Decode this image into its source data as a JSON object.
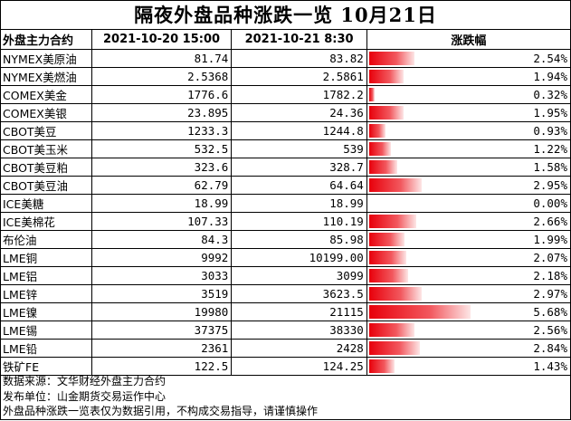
{
  "title": "隔夜外盘品种涨跌一览 10月21日",
  "headers": {
    "contract": "外盘主力合约",
    "prev": "2021-10-20 15:00",
    "curr": "2021-10-21 8:30",
    "change": "涨跌幅"
  },
  "rows": [
    {
      "name": "NYMEX美原油",
      "prev": "81.74",
      "curr": "83.82",
      "change": "2.54%",
      "pct": 2.54
    },
    {
      "name": "NYMEX美燃油",
      "prev": "2.5368",
      "curr": "2.5861",
      "change": "1.94%",
      "pct": 1.94
    },
    {
      "name": "COMEX美金",
      "prev": "1776.6",
      "curr": "1782.2",
      "change": "0.32%",
      "pct": 0.32
    },
    {
      "name": "COMEX美银",
      "prev": "23.895",
      "curr": "24.36",
      "change": "1.95%",
      "pct": 1.95
    },
    {
      "name": "CBOT美豆",
      "prev": "1233.3",
      "curr": "1244.8",
      "change": "0.93%",
      "pct": 0.93
    },
    {
      "name": "CBOT美玉米",
      "prev": "532.5",
      "curr": "539",
      "change": "1.22%",
      "pct": 1.22
    },
    {
      "name": "CBOT美豆粕",
      "prev": "323.6",
      "curr": "328.7",
      "change": "1.58%",
      "pct": 1.58
    },
    {
      "name": "CBOT美豆油",
      "prev": "62.79",
      "curr": "64.64",
      "change": "2.95%",
      "pct": 2.95
    },
    {
      "name": "ICE美糖",
      "prev": "18.99",
      "curr": "18.99",
      "change": "0.00%",
      "pct": 0.0
    },
    {
      "name": "ICE美棉花",
      "prev": "107.33",
      "curr": "110.19",
      "change": "2.66%",
      "pct": 2.66
    },
    {
      "name": "布伦油",
      "prev": "84.3",
      "curr": "85.98",
      "change": "1.99%",
      "pct": 1.99
    },
    {
      "name": "LME铜",
      "prev": "9992",
      "curr": "10199.00",
      "change": "2.07%",
      "pct": 2.07
    },
    {
      "name": "LME铝",
      "prev": "3033",
      "curr": "3099",
      "change": "2.18%",
      "pct": 2.18
    },
    {
      "name": "LME锌",
      "prev": "3519",
      "curr": "3623.5",
      "change": "2.97%",
      "pct": 2.97
    },
    {
      "name": "LME镍",
      "prev": "19980",
      "curr": "21115",
      "change": "5.68%",
      "pct": 5.68
    },
    {
      "name": "LME锡",
      "prev": "37375",
      "curr": "38330",
      "change": "2.56%",
      "pct": 2.56
    },
    {
      "name": "LME铅",
      "prev": "2361",
      "curr": "2428",
      "change": "2.84%",
      "pct": 2.84
    },
    {
      "name": "铁矿FE",
      "prev": "122.5",
      "curr": "124.25",
      "change": "1.43%",
      "pct": 1.43
    }
  ],
  "bar_max_pct": 5.68,
  "colors": {
    "bar": "#e8000b",
    "border": "#000000"
  },
  "footer": {
    "source": "数据来源：文华财经外盘主力合约",
    "publisher": "发布单位：山金期货交易运作中心",
    "disclaimer": "外盘品种涨跌一览表仅为数据引用，不构成交易指导，请谨慎操作"
  }
}
